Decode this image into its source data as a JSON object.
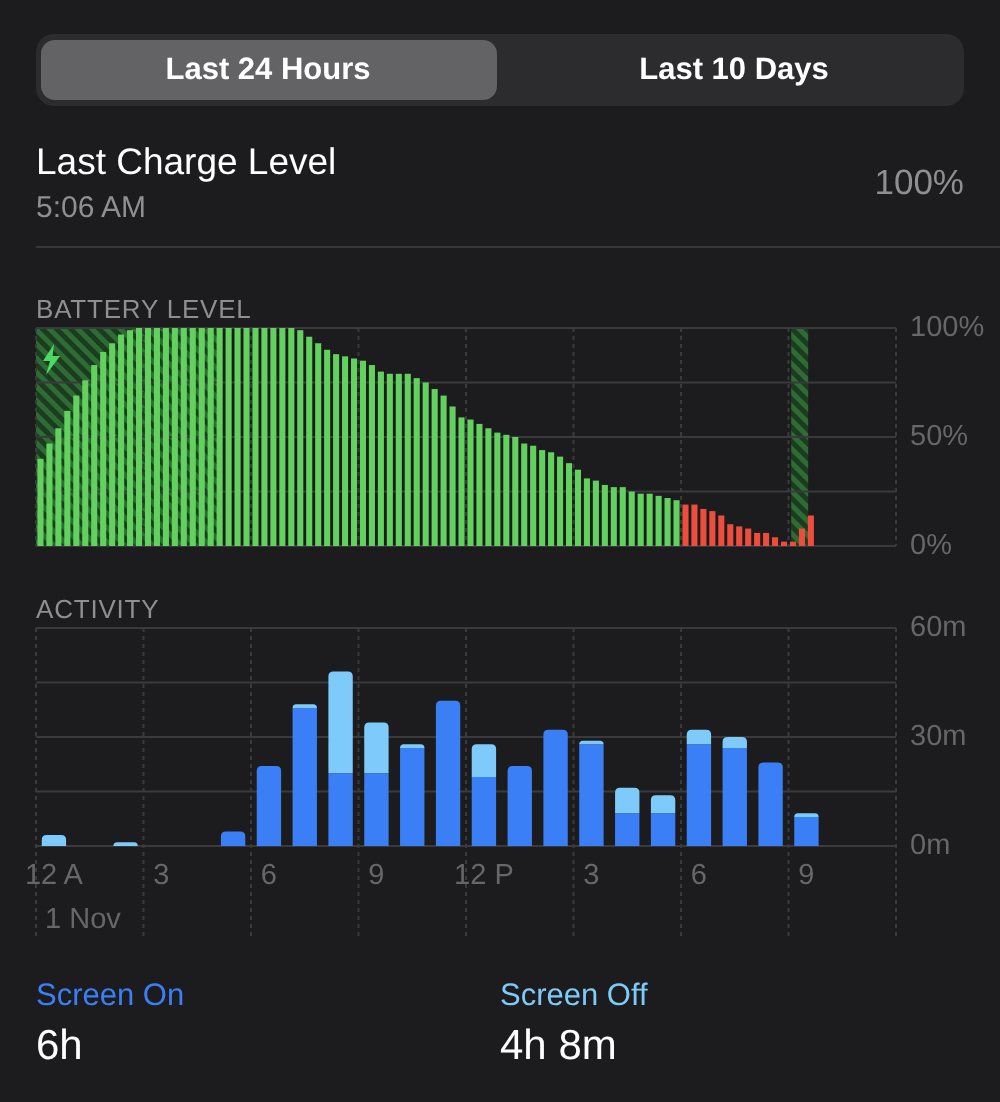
{
  "chart_data": [
    {
      "type": "other",
      "title": "Last Charge Level",
      "subtitle": "5:06 AM",
      "annotations": [
        "Last 24 Hours",
        "Last 10 Days",
        "100%"
      ]
    },
    {
      "type": "bar",
      "title": "BATTERY LEVEL",
      "categories": [
        null,
        null,
        null,
        null,
        null,
        null,
        null,
        null,
        null,
        null,
        null,
        null,
        null,
        null,
        null,
        null,
        null,
        null,
        null,
        null,
        null,
        null,
        null,
        null,
        null,
        null,
        null,
        null,
        null,
        null,
        null,
        null,
        null,
        null,
        null,
        null,
        null,
        null,
        null,
        null,
        null,
        null,
        null,
        null,
        null,
        null,
        null,
        null,
        null,
        null,
        null,
        null,
        null,
        null,
        null,
        null,
        null,
        null,
        null,
        null,
        null,
        null,
        null,
        null,
        null,
        null,
        null,
        null,
        null,
        null,
        null,
        null,
        null,
        null,
        null,
        null,
        null,
        null,
        null,
        null,
        null,
        null,
        null,
        null,
        null,
        null,
        null,
        null,
        null,
        null,
        null,
        null,
        null,
        null,
        null,
        null
      ],
      "values": [
        40,
        47,
        54,
        62,
        69,
        76,
        83,
        89,
        93,
        97,
        99,
        100,
        100,
        100,
        100,
        100,
        100,
        100,
        100,
        100,
        100,
        100,
        100,
        100,
        100,
        100,
        100,
        100,
        100,
        99,
        96,
        93,
        90,
        88,
        87,
        86,
        85,
        83,
        80,
        79,
        79,
        79,
        77,
        75,
        72,
        69,
        64,
        59,
        58,
        56,
        54,
        52,
        51,
        50,
        47,
        46,
        44,
        43,
        41,
        38,
        35,
        31,
        30,
        28,
        27,
        27,
        25,
        24,
        24,
        23,
        22,
        21,
        19,
        19,
        17,
        16,
        14,
        10,
        9,
        8,
        6,
        6,
        4,
        2,
        2,
        8,
        14,
        null,
        null,
        null,
        null,
        null,
        null,
        null,
        null,
        null
      ],
      "colors": [
        "#62d15e",
        "#62d15e",
        "#62d15e",
        "#62d15e",
        "#62d15e",
        "#62d15e",
        "#62d15e",
        "#62d15e",
        "#62d15e",
        "#62d15e",
        "#62d15e",
        "#62d15e",
        "#62d15e",
        "#62d15e",
        "#62d15e",
        "#62d15e",
        "#62d15e",
        "#62d15e",
        "#62d15e",
        "#62d15e",
        "#62d15e",
        "#62d15e",
        "#62d15e",
        "#62d15e",
        "#62d15e",
        "#62d15e",
        "#62d15e",
        "#62d15e",
        "#62d15e",
        "#62d15e",
        "#62d15e",
        "#62d15e",
        "#62d15e",
        "#62d15e",
        "#62d15e",
        "#62d15e",
        "#62d15e",
        "#62d15e",
        "#62d15e",
        "#62d15e",
        "#62d15e",
        "#62d15e",
        "#62d15e",
        "#62d15e",
        "#62d15e",
        "#62d15e",
        "#62d15e",
        "#62d15e",
        "#62d15e",
        "#62d15e",
        "#62d15e",
        "#62d15e",
        "#62d15e",
        "#62d15e",
        "#62d15e",
        "#62d15e",
        "#62d15e",
        "#62d15e",
        "#62d15e",
        "#62d15e",
        "#62d15e",
        "#62d15e",
        "#62d15e",
        "#62d15e",
        "#62d15e",
        "#62d15e",
        "#62d15e",
        "#62d15e",
        "#62d15e",
        "#62d15e",
        "#62d15e",
        "#62d15e",
        "#ec4d3d",
        "#ec4d3d",
        "#ec4d3d",
        "#ec4d3d",
        "#ec4d3d",
        "#ec4d3d",
        "#ec4d3d",
        "#ec4d3d",
        "#ec4d3d",
        "#ec4d3d",
        "#ec4d3d",
        "#ec4d3d",
        "#ec4d3d",
        "#ec4d3d",
        "#ec4d3d",
        null,
        null,
        null,
        null,
        null,
        null,
        null,
        null,
        null
      ],
      "ylim": [
        0,
        100
      ],
      "yticks": [
        {
          "value": 0,
          "label": "0%"
        },
        {
          "value": 25,
          "label": null
        },
        {
          "value": 50,
          "label": "50%"
        },
        {
          "value": 75,
          "label": null
        },
        {
          "value": 100,
          "label": "100%"
        }
      ],
      "grid": true,
      "tick_labels": "y"
    },
    {
      "type": "bar",
      "title": "ACTIVITY",
      "stacked": true,
      "categories": [
        "12 A",
        null,
        null,
        "3",
        null,
        null,
        "6",
        null,
        null,
        "9",
        null,
        null,
        "12 P",
        null,
        null,
        "3",
        null,
        null,
        "6",
        null,
        null,
        "9",
        null,
        null
      ],
      "series": [
        {
          "name": "Screen On",
          "color": "#3a7ff6",
          "values": [
            null,
            null,
            null,
            null,
            null,
            4,
            22,
            38,
            20,
            20,
            27,
            40,
            19,
            22,
            32,
            28,
            9,
            9,
            28,
            27,
            23,
            8,
            null,
            null
          ]
        },
        {
          "name": "Screen Off",
          "color": "#7ecafa",
          "values": [
            3,
            null,
            1,
            null,
            null,
            null,
            null,
            1,
            28,
            14,
            1,
            null,
            9,
            null,
            null,
            1,
            7,
            5,
            4,
            3,
            null,
            1,
            null,
            null
          ]
        }
      ],
      "ylim": [
        0,
        60
      ],
      "yticks": [
        {
          "value": 0,
          "label": "0m"
        },
        {
          "value": 15,
          "label": null
        },
        {
          "value": 30,
          "label": "30m"
        },
        {
          "value": 45,
          "label": null
        },
        {
          "value": 60,
          "label": "60m"
        }
      ],
      "grid": true,
      "legend": "bottom",
      "xlabel": "1 Nov",
      "annotations": [
        "6h",
        "4h 8m"
      ]
    }
  ]
}
